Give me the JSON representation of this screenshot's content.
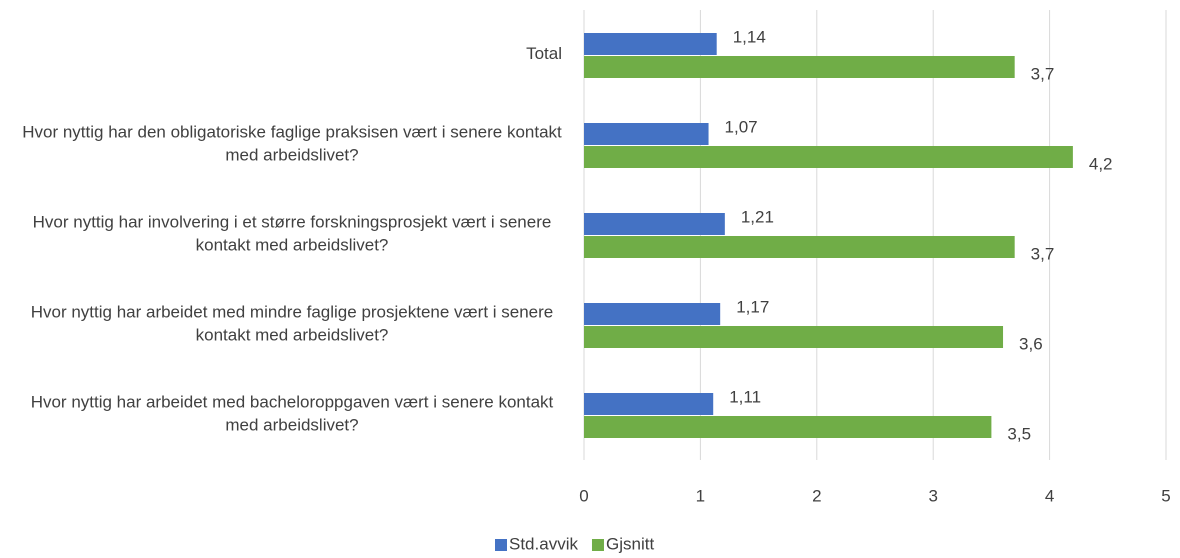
{
  "chart_data": {
    "type": "bar",
    "orientation": "horizontal",
    "categories": [
      "Total",
      "Hvor nyttig har den obligatoriske faglige praksisen vært i senere kontakt med arbeidslivet?",
      "Hvor nyttig har involvering i et større forskningsprosjekt vært i senere kontakt med arbeidslivet?",
      "Hvor nyttig har arbeidet med mindre faglige prosjektene vært i senere kontakt med arbeidslivet?",
      "Hvor nyttig har arbeidet med bacheloroppgaven vært i senere kontakt med arbeidslivet?"
    ],
    "series": [
      {
        "name": "Std.avvik",
        "color": "#4472c4",
        "values": [
          1.14,
          1.07,
          1.21,
          1.17,
          1.11
        ],
        "value_labels": [
          "1,14",
          "1,07",
          "1,21",
          "1,17",
          "1,11"
        ]
      },
      {
        "name": "Gjsnitt",
        "color": "#70ad47",
        "values": [
          3.7,
          4.2,
          3.7,
          3.6,
          3.5
        ],
        "value_labels": [
          "3,7",
          "4,2",
          "3,7",
          "3,6",
          "3,5"
        ]
      }
    ],
    "xlim": [
      0,
      5
    ],
    "xticks": [
      0,
      1,
      2,
      3,
      4,
      5
    ],
    "grid": true,
    "legend": "bottom"
  }
}
